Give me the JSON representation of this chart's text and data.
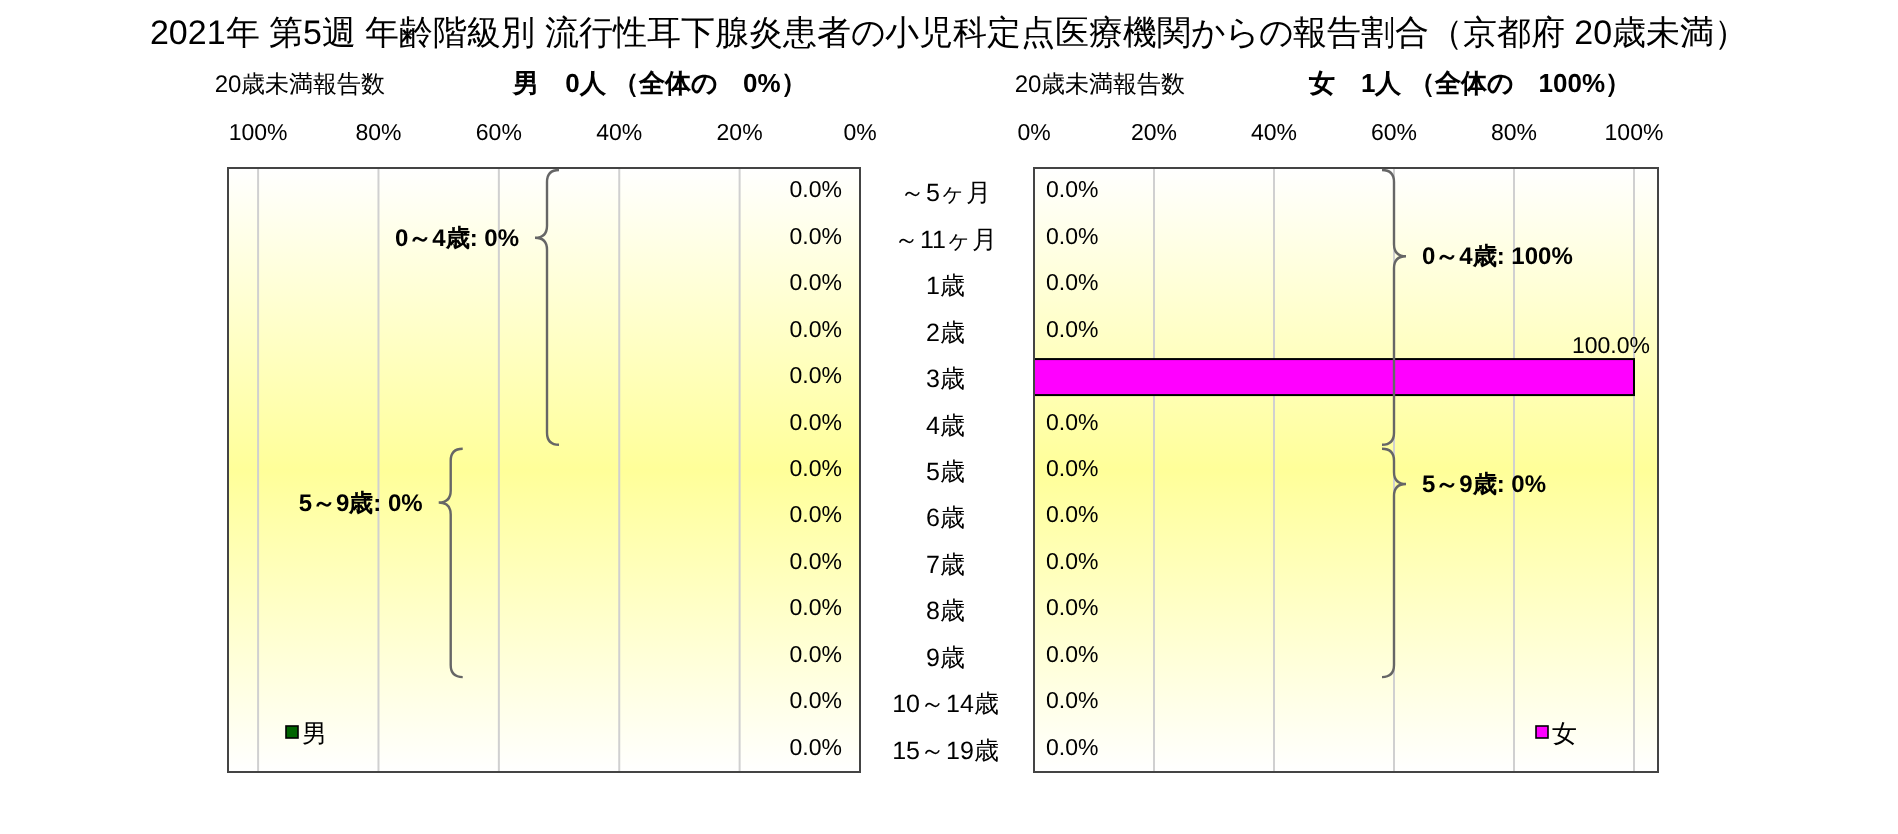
{
  "chart_data": [
    {
      "type": "bar",
      "orientation": "horizontal",
      "title": "2021年 第5週 年齢階級別 流行性耳下腺炎患者の小児科定点医療機関からの報告割合（京都府 20歳未満）",
      "subtitle": "20歳未満報告数",
      "categories": [
        "～5ヶ月",
        "～11ヶ月",
        "1歳",
        "2歳",
        "3歳",
        "4歳",
        "5歳",
        "6歳",
        "7歳",
        "8歳",
        "9歳",
        "10～14歳",
        "15～19歳"
      ],
      "series": [
        {
          "name": "男",
          "color": "#006400",
          "values": [
            0,
            0,
            0,
            0,
            0,
            0,
            0,
            0,
            0,
            0,
            0,
            0,
            0
          ],
          "value_labels": [
            "0.0%",
            "0.0%",
            "0.0%",
            "0.0%",
            "0.0%",
            "0.0%",
            "0.0%",
            "0.0%",
            "0.0%",
            "0.0%",
            "0.0%",
            "0.0%",
            "0.0%"
          ]
        }
      ],
      "xlim": [
        105,
        0
      ],
      "xticks": [
        {
          "value": 100,
          "label": "100%"
        },
        {
          "value": 80,
          "label": "80%"
        },
        {
          "value": 60,
          "label": "60%"
        },
        {
          "value": 40,
          "label": "40%"
        },
        {
          "value": 20,
          "label": "20%"
        },
        {
          "value": 0,
          "label": "0%"
        }
      ],
      "grid": "x",
      "legend": "bottom left",
      "annotations": [
        "男　0人 （全体の　0%）",
        "0～4歳: 0%",
        "5～9歳: 0%"
      ]
    },
    {
      "type": "bar",
      "orientation": "horizontal",
      "subtitle": "20歳未満報告数",
      "series": [
        {
          "name": "女",
          "color": "#ff00ff",
          "values": [
            0,
            0,
            0,
            0,
            100,
            0,
            0,
            0,
            0,
            0,
            0,
            0,
            0
          ],
          "value_labels": [
            "0.0%",
            "0.0%",
            "0.0%",
            "0.0%",
            "100.0%",
            "0.0%",
            "0.0%",
            "0.0%",
            "0.0%",
            "0.0%",
            "0.0%",
            "0.0%",
            "0.0%"
          ]
        }
      ],
      "xlim": [
        0,
        104
      ],
      "xticks": [
        {
          "value": 0,
          "label": "0%"
        },
        {
          "value": 20,
          "label": "20%"
        },
        {
          "value": 40,
          "label": "40%"
        },
        {
          "value": 60,
          "label": "60%"
        },
        {
          "value": 80,
          "label": "80%"
        },
        {
          "value": 100,
          "label": "100%"
        }
      ],
      "grid": "x",
      "legend": "bottom right",
      "annotations": [
        "女　1人 （全体の　100%）",
        "0～4歳: 100%",
        "5～9歳: 0%"
      ]
    }
  ]
}
